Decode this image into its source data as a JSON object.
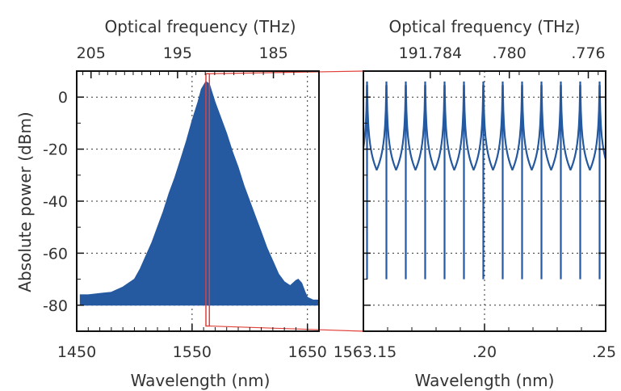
{
  "figure": {
    "ylabel": "Absolute power (dBm)",
    "accent_color": "#2559a0",
    "zoom_color": "#e0413a"
  },
  "chart_data": [
    {
      "type": "area",
      "xlabel": "Wavelength (nm)",
      "x2label": "Optical frequency (THz)",
      "ylabel": "Absolute power (dBm)",
      "xlim": [
        1450,
        1660
      ],
      "ylim": [
        -90,
        10
      ],
      "xticks": [
        1450,
        1550,
        1650
      ],
      "xtick_labels": [
        "1450",
        "1550",
        "1650"
      ],
      "x2ticks_thz": [
        205,
        195,
        185
      ],
      "x2tick_labels": [
        "205",
        "195",
        "185"
      ],
      "yticks": [
        0,
        -20,
        -40,
        -60,
        -80
      ],
      "ytick_labels": [
        "0",
        "-20",
        "-40",
        "-60",
        "-80"
      ],
      "grid": true,
      "series": [
        {
          "x": [
            1453,
            1460,
            1470,
            1480,
            1490,
            1500,
            1505,
            1510,
            1515,
            1520,
            1525,
            1530,
            1535,
            1540,
            1545,
            1550,
            1555,
            1558,
            1562,
            1565,
            1570,
            1575,
            1580,
            1585,
            1590,
            1595,
            1600,
            1605,
            1610,
            1615,
            1620,
            1625,
            1630,
            1635,
            1640,
            1642,
            1645,
            1648,
            1650,
            1655,
            1659
          ],
          "y": [
            -76,
            -76,
            -75.5,
            -75,
            -73,
            -70,
            -66,
            -61,
            -56,
            -50,
            -44,
            -37,
            -31,
            -24,
            -17,
            -9,
            -2,
            3,
            6,
            5,
            -2,
            -8,
            -14,
            -21,
            -27,
            -34,
            -40,
            -46,
            -52,
            -58,
            -63,
            -68,
            -71,
            -72.5,
            -70.5,
            -70,
            -71.5,
            -75,
            -77,
            -78,
            -78
          ]
        }
      ]
    },
    {
      "type": "line",
      "xlabel": "Wavelength (nm)",
      "x2label": "Optical frequency (THz)",
      "xlim": [
        1563.15,
        1563.25
      ],
      "ylim": [
        -90,
        10
      ],
      "xticks": [
        1563.15,
        1563.2,
        1563.25
      ],
      "xtick_labels": [
        "1563.15",
        ".20",
        ".25"
      ],
      "x2ticks_thz": [
        191.784,
        191.78,
        191.776
      ],
      "x2tick_labels": [
        "191.784",
        ".780",
        ".776"
      ],
      "yticks": [
        0,
        -20,
        -40,
        -60,
        -80
      ],
      "grid": true,
      "comb_peaks_nm": [
        1563.1515,
        1563.1595,
        1563.1675,
        1563.1755,
        1563.1835,
        1563.1915,
        1563.1995,
        1563.2075,
        1563.2155,
        1563.2235,
        1563.2315,
        1563.2395,
        1563.2475
      ],
      "peak_level_dbm": 6,
      "floor_level_dbm": -80
    }
  ]
}
